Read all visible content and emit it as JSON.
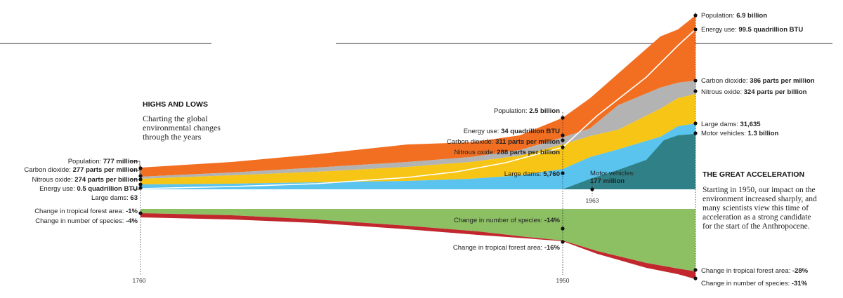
{
  "intro": {
    "title": "HIGHS AND LOWS",
    "subtitle_lines": [
      "Charting the global",
      "environmental changes",
      "through the years"
    ]
  },
  "side": {
    "title": "THE GREAT ACCELERATION",
    "body_lines": [
      "Starting in 1950, our impact on the",
      "environment increased sharply, and",
      "many scientists view this time of",
      "acceleration as a strong candidate",
      "for the start of the Anthropocene."
    ]
  },
  "colors": {
    "population": "#f26f21",
    "carbon_dioxide": "#b3b3b3",
    "nitrous_oxide": "#f7c515",
    "large_dams": "#5bc4ee",
    "motor_vehicles": "#2f8187",
    "forest": "#8cc063",
    "species": "#c1272d",
    "energy_line": "#ffffff"
  },
  "chart_data": {
    "type": "area",
    "x_ticks": [
      "1760",
      "1950"
    ],
    "extra_tick": "1963",
    "upper": {
      "series": [
        {
          "name": "Population",
          "unit": "billion",
          "x": [
            1760,
            1950,
            2010
          ],
          "values": [
            0.777,
            2.5,
            6.9
          ]
        },
        {
          "name": "Energy use",
          "unit": "quadrillion BTU",
          "x": [
            1760,
            1950,
            2010
          ],
          "values": [
            0.5,
            34,
            99.5
          ]
        },
        {
          "name": "Carbon dioxide",
          "unit": "parts per million",
          "x": [
            1760,
            1950,
            2010
          ],
          "values": [
            277,
            311,
            386
          ]
        },
        {
          "name": "Nitrous oxide",
          "unit": "parts per billion",
          "x": [
            1760,
            1950,
            2010
          ],
          "values": [
            274,
            288,
            324
          ]
        },
        {
          "name": "Large dams",
          "x": [
            1760,
            1950,
            2010
          ],
          "values": [
            63,
            5760,
            31635
          ]
        },
        {
          "name": "Motor vehicles",
          "unit": "billion",
          "x": [
            1963,
            2010
          ],
          "values": [
            0.177,
            1.3
          ]
        }
      ]
    },
    "lower": {
      "unit": "%",
      "series": [
        {
          "name": "Change in tropical forest area",
          "x": [
            1760,
            1950,
            2010
          ],
          "values": [
            -1,
            -16,
            -28
          ]
        },
        {
          "name": "Change in number of species",
          "x": [
            1760,
            1950,
            2010
          ],
          "values": [
            -4,
            -14,
            -31
          ]
        }
      ]
    },
    "labels": {
      "left": [
        {
          "prefix": "Population: ",
          "value": "777 million"
        },
        {
          "prefix": "Carbon dioxide: ",
          "value": "277 parts per million"
        },
        {
          "prefix": "Nitrous oxide: ",
          "value": "274 parts per billion"
        },
        {
          "prefix": "Energy use: ",
          "value": "0.5 quadrillion BTU"
        },
        {
          "prefix": "Large dams: ",
          "value": "63"
        },
        {
          "prefix": "Change in tropical forest area: ",
          "value": "-1%"
        },
        {
          "prefix": "Change in number of species: ",
          "value": "-4%"
        }
      ],
      "mid": [
        {
          "prefix": "Population: ",
          "value": "2.5 billion"
        },
        {
          "prefix": "Energy use: ",
          "value": "34 quadrillion BTU"
        },
        {
          "prefix": "Carbon dioxide: ",
          "value": "311 parts per million"
        },
        {
          "prefix": "Nitrous oxide: ",
          "value": "288 parts per billion"
        },
        {
          "prefix": "Large dams: ",
          "value": "5,760"
        },
        {
          "prefix": "Change in number of species: ",
          "value": "-14%"
        },
        {
          "prefix": "Change in tropical forest area: ",
          "value": "-16%"
        }
      ],
      "motor_vehicles_start": {
        "prefix": "Motor vehicles:",
        "value": "177 million"
      },
      "right": [
        {
          "prefix": "Population: ",
          "value": "6.9 billion"
        },
        {
          "prefix": "Energy use: ",
          "value": "99.5 quadrillion BTU"
        },
        {
          "prefix": "Carbon dioxide: ",
          "value": "386 parts per million"
        },
        {
          "prefix": "Nitrous oxide: ",
          "value": "324 parts per billion"
        },
        {
          "prefix": "Large dams: ",
          "value": "31,635"
        },
        {
          "prefix": "Motor vehicles: ",
          "value": "1.3 billion"
        },
        {
          "prefix": "Change in tropical forest area: ",
          "value": "-28%"
        },
        {
          "prefix": "Change in number of species: ",
          "value": "-31%"
        }
      ]
    }
  }
}
